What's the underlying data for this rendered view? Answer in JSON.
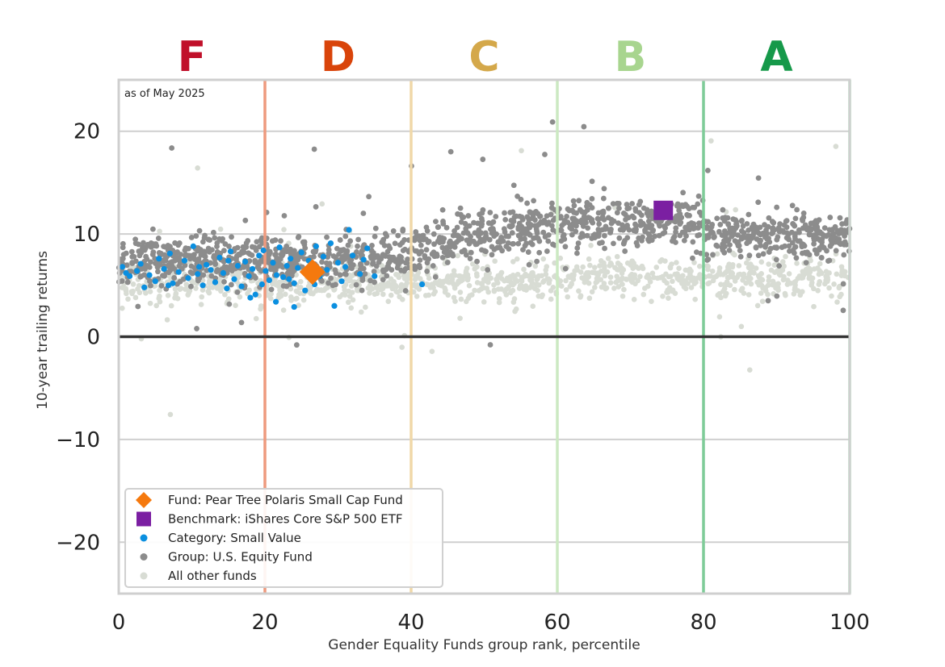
{
  "chart_data": {
    "type": "scatter",
    "annotation": "as of May 2025",
    "xlabel": "Gender Equality Funds group rank, percentile",
    "ylabel": "10-year trailing returns",
    "xlim": [
      0,
      100
    ],
    "ylim": [
      -25,
      25
    ],
    "x_ticks": [
      "0",
      "20",
      "40",
      "60",
      "80",
      "100"
    ],
    "y_ticks": [
      "20",
      "10",
      "0",
      "−10",
      "−20"
    ],
    "y_tick_values": [
      20,
      10,
      0,
      -10,
      -20
    ],
    "x_tick_values": [
      0,
      20,
      40,
      60,
      80,
      100
    ],
    "grid": "horizontal",
    "grades": [
      {
        "label": "F",
        "x": 10,
        "color": "#c0102a"
      },
      {
        "label": "D",
        "x": 30,
        "color": "#d9440a"
      },
      {
        "label": "C",
        "x": 50,
        "color": "#d4a84a"
      },
      {
        "label": "B",
        "x": 70,
        "color": "#a8d58f"
      },
      {
        "label": "A",
        "x": 90,
        "color": "#16994a"
      }
    ],
    "boundaries": [
      {
        "x": 20,
        "color": "#ee9a7e"
      },
      {
        "x": 40,
        "color": "#f0d8a8"
      },
      {
        "x": 60,
        "color": "#cce9c2"
      },
      {
        "x": 80,
        "color": "#7fcb98"
      },
      {
        "x": 100,
        "color": "#a6d9b4"
      }
    ],
    "legend_position": "bottom-left",
    "series": [
      {
        "name": "Fund: Pear Tree Polaris Small Cap Fund",
        "marker": "diamond",
        "color": "#f5790e",
        "points": [
          {
            "x": 26.5,
            "y": 6.3
          }
        ]
      },
      {
        "name": "Benchmark: iShares Core S&P 500 ETF",
        "marker": "square",
        "color": "#7b1fa2",
        "points": [
          {
            "x": 74.5,
            "y": 12.3
          }
        ]
      },
      {
        "name": "Category: Small Value",
        "marker": "dot",
        "color": "#0a8fe0",
        "points": [
          {
            "x": 0.5,
            "y": 6.8
          },
          {
            "x": 1.5,
            "y": 5.9
          },
          {
            "x": 2.5,
            "y": 6.4
          },
          {
            "x": 3.0,
            "y": 7.1
          },
          {
            "x": 3.5,
            "y": 4.8
          },
          {
            "x": 4.2,
            "y": 6.0
          },
          {
            "x": 5.0,
            "y": 5.4
          },
          {
            "x": 5.5,
            "y": 7.6
          },
          {
            "x": 6.2,
            "y": 6.6
          },
          {
            "x": 7.0,
            "y": 8.1
          },
          {
            "x": 7.4,
            "y": 5.2
          },
          {
            "x": 8.2,
            "y": 6.3
          },
          {
            "x": 9.0,
            "y": 7.4
          },
          {
            "x": 9.5,
            "y": 5.7
          },
          {
            "x": 10.2,
            "y": 8.8
          },
          {
            "x": 10.8,
            "y": 6.1
          },
          {
            "x": 11.5,
            "y": 5.0
          },
          {
            "x": 12.0,
            "y": 7.0
          },
          {
            "x": 12.6,
            "y": 6.5
          },
          {
            "x": 13.2,
            "y": 5.3
          },
          {
            "x": 13.8,
            "y": 7.7
          },
          {
            "x": 14.3,
            "y": 6.2
          },
          {
            "x": 14.8,
            "y": 4.7
          },
          {
            "x": 15.3,
            "y": 8.3
          },
          {
            "x": 15.8,
            "y": 5.6
          },
          {
            "x": 16.3,
            "y": 6.9
          },
          {
            "x": 16.8,
            "y": 4.9
          },
          {
            "x": 17.3,
            "y": 7.3
          },
          {
            "x": 17.8,
            "y": 5.9
          },
          {
            "x": 18.3,
            "y": 6.6
          },
          {
            "x": 18.7,
            "y": 4.1
          },
          {
            "x": 19.2,
            "y": 7.9
          },
          {
            "x": 19.6,
            "y": 5.1
          },
          {
            "x": 20.1,
            "y": 6.4
          },
          {
            "x": 20.6,
            "y": 5.5
          },
          {
            "x": 21.1,
            "y": 7.2
          },
          {
            "x": 21.6,
            "y": 6.0
          },
          {
            "x": 22.0,
            "y": 8.7
          },
          {
            "x": 22.5,
            "y": 5.8
          },
          {
            "x": 23.0,
            "y": 6.9
          },
          {
            "x": 23.5,
            "y": 7.6
          },
          {
            "x": 24.0,
            "y": 5.2
          },
          {
            "x": 24.5,
            "y": 6.7
          },
          {
            "x": 25.0,
            "y": 8.2
          },
          {
            "x": 25.5,
            "y": 4.5
          },
          {
            "x": 26.0,
            "y": 7.4
          },
          {
            "x": 27.0,
            "y": 8.8
          },
          {
            "x": 27.5,
            "y": 5.9
          },
          {
            "x": 28.0,
            "y": 7.8
          },
          {
            "x": 28.5,
            "y": 6.5
          },
          {
            "x": 29.0,
            "y": 9.1
          },
          {
            "x": 29.5,
            "y": 3.0
          },
          {
            "x": 30.0,
            "y": 7.2
          },
          {
            "x": 30.5,
            "y": 5.4
          },
          {
            "x": 31.0,
            "y": 6.8
          },
          {
            "x": 31.5,
            "y": 10.4
          },
          {
            "x": 32.0,
            "y": 7.9
          },
          {
            "x": 33.0,
            "y": 6.1
          },
          {
            "x": 34.0,
            "y": 8.6
          },
          {
            "x": 35.0,
            "y": 5.9
          },
          {
            "x": 24.0,
            "y": 2.9
          },
          {
            "x": 21.5,
            "y": 3.4
          },
          {
            "x": 18.0,
            "y": 3.8
          },
          {
            "x": 1.0,
            "y": 6.2
          },
          {
            "x": 6.8,
            "y": 5.0
          },
          {
            "x": 11.0,
            "y": 6.8
          },
          {
            "x": 15.0,
            "y": 7.4
          },
          {
            "x": 19.8,
            "y": 8.4
          },
          {
            "x": 23.3,
            "y": 5.6
          },
          {
            "x": 26.8,
            "y": 5.1
          },
          {
            "x": 33.5,
            "y": 7.5
          },
          {
            "x": 41.5,
            "y": 5.1
          }
        ]
      },
      {
        "name": "Group: U.S. Equity Fund",
        "marker": "dot",
        "color": "#8c8c8c",
        "generated": {
          "count": 1500,
          "seed": 11
        }
      },
      {
        "name": "All other funds",
        "marker": "dot",
        "color": "#d8dcd4",
        "generated": {
          "count": 1100,
          "seed": 29
        }
      }
    ]
  }
}
